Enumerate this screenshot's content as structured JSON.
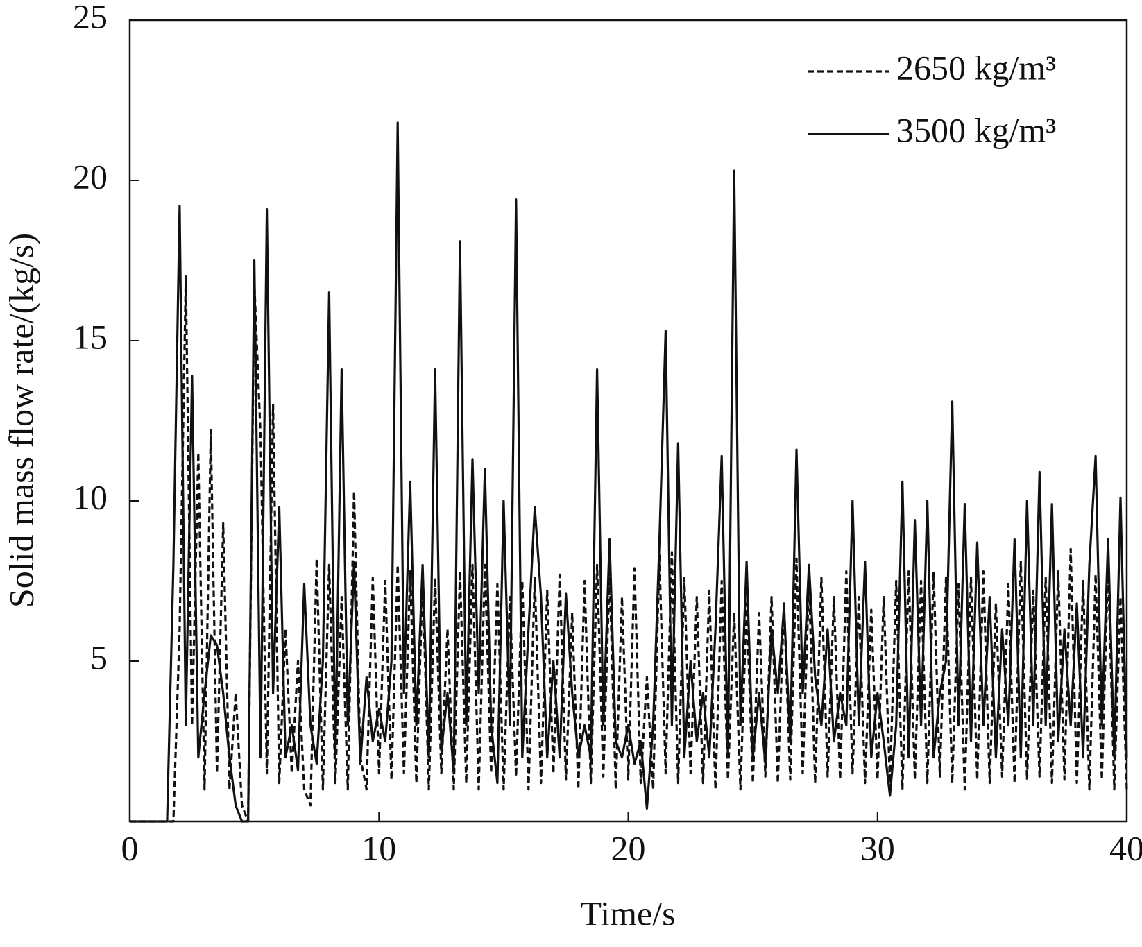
{
  "chart_data": {
    "type": "line",
    "xlabel": "Time/s",
    "ylabel": "Solid mass flow rate/(kg/s)",
    "x": [
      0,
      0.25,
      0.5,
      0.75,
      1,
      1.25,
      1.5,
      1.75,
      2,
      2.25,
      2.5,
      2.75,
      3,
      3.25,
      3.5,
      3.75,
      4,
      4.25,
      4.5,
      4.75,
      5,
      5.25,
      5.5,
      5.75,
      6,
      6.25,
      6.5,
      6.75,
      7,
      7.25,
      7.5,
      7.75,
      8,
      8.25,
      8.5,
      8.75,
      9,
      9.25,
      9.5,
      9.75,
      10,
      10.25,
      10.5,
      10.75,
      11,
      11.25,
      11.5,
      11.75,
      12,
      12.25,
      12.5,
      12.75,
      13,
      13.25,
      13.5,
      13.75,
      14,
      14.25,
      14.5,
      14.75,
      15,
      15.25,
      15.5,
      15.75,
      16,
      16.25,
      16.5,
      16.75,
      17,
      17.25,
      17.5,
      17.75,
      18,
      18.25,
      18.5,
      18.75,
      19,
      19.25,
      19.5,
      19.75,
      20,
      20.25,
      20.5,
      20.75,
      21,
      21.25,
      21.5,
      21.75,
      22,
      22.25,
      22.5,
      22.75,
      23,
      23.25,
      23.5,
      23.75,
      24,
      24.25,
      24.5,
      24.75,
      25,
      25.25,
      25.5,
      25.75,
      26,
      26.25,
      26.5,
      26.75,
      27,
      27.25,
      27.5,
      27.75,
      28,
      28.25,
      28.5,
      28.75,
      29,
      29.25,
      29.5,
      29.75,
      30,
      30.25,
      30.5,
      30.75,
      31,
      31.25,
      31.5,
      31.75,
      32,
      32.25,
      32.5,
      32.75,
      33,
      33.25,
      33.5,
      33.75,
      34,
      34.25,
      34.5,
      34.75,
      35,
      35.25,
      35.5,
      35.75,
      36,
      36.25,
      36.5,
      36.75,
      37,
      37.25,
      37.5,
      37.75,
      38,
      38.25,
      38.5,
      38.75,
      39,
      39.25,
      39.5,
      39.75,
      40
    ],
    "series": [
      {
        "name": "2650 kg/m³",
        "color": "#111111",
        "style": "dashed",
        "values": [
          0,
          0,
          0,
          0,
          0,
          0,
          0,
          0,
          6,
          17,
          3,
          11.5,
          1,
          12.2,
          1.5,
          9.3,
          1,
          4,
          0.5,
          0,
          16.8,
          12,
          1.5,
          13,
          1.2,
          6,
          1.5,
          5,
          1,
          0.5,
          8.2,
          1,
          8,
          1.2,
          7,
          1,
          10.3,
          2,
          1,
          7.6,
          1.5,
          7.5,
          1.3,
          8,
          1.5,
          7.8,
          1.2,
          7.5,
          1,
          7.6,
          1.5,
          6,
          1,
          7.8,
          1.2,
          8,
          1,
          8,
          1.5,
          7.4,
          1,
          7,
          1.4,
          7.5,
          1,
          7.6,
          1.2,
          7.2,
          1.5,
          7.7,
          1.3,
          6.5,
          1,
          7.5,
          1.2,
          8,
          1.4,
          7.8,
          1,
          7,
          1.3,
          7.9,
          1.2,
          4.5,
          1,
          8.3,
          1.5,
          8.4,
          1.2,
          7.6,
          1.5,
          7,
          1.2,
          7.2,
          1,
          7.5,
          1.3,
          6.5,
          1,
          6.8,
          1.2,
          6.5,
          1.4,
          7,
          1.2,
          6.8,
          1.3,
          8.2,
          1.5,
          7.5,
          1.2,
          7.6,
          1.4,
          7,
          1.3,
          7.8,
          1.5,
          7,
          1.2,
          6.6,
          1.3,
          7,
          1.2,
          7.5,
          1,
          7.8,
          1.3,
          7.5,
          1.2,
          7.8,
          1.4,
          7.6,
          1.2,
          7.4,
          1,
          7.6,
          1.3,
          7.8,
          1.2,
          6.8,
          1.4,
          7.4,
          1.2,
          8.1,
          1.3,
          7.2,
          1.4,
          7.6,
          1.2,
          7.8,
          1.3,
          8.5,
          1.2,
          7.5,
          1,
          7.7,
          1.3,
          8,
          1,
          7,
          1
        ]
      },
      {
        "name": "3500 kg/m³",
        "color": "#111111",
        "style": "solid",
        "values": [
          0,
          0,
          0,
          0,
          0,
          0,
          0,
          8,
          19.2,
          3,
          13.9,
          2,
          4,
          5.8,
          5.5,
          4,
          2,
          0.5,
          0,
          0,
          17.5,
          2,
          19.1,
          4,
          9.8,
          2,
          3,
          1.6,
          7.4,
          3,
          1.8,
          5,
          16.5,
          2,
          14.1,
          3,
          8.1,
          1.8,
          4.5,
          2.5,
          3.5,
          2.5,
          5,
          21.8,
          4,
          10.6,
          3,
          8,
          2,
          14.1,
          2.2,
          4,
          1.5,
          18.1,
          3,
          11.3,
          4,
          11,
          3,
          1.2,
          10,
          3,
          19.4,
          2,
          6,
          9.8,
          7,
          2,
          5,
          2,
          7.1,
          4,
          2,
          3,
          2,
          14.1,
          3,
          8.8,
          2.5,
          2,
          3,
          1.8,
          2.5,
          0.4,
          3,
          8.7,
          15.3,
          3,
          11.8,
          2,
          5,
          2.5,
          4,
          2,
          6,
          11.4,
          2,
          20.3,
          3,
          8.1,
          2,
          4,
          1.8,
          6,
          4,
          6.7,
          2.5,
          11.6,
          4,
          8,
          4.5,
          3,
          6,
          2.5,
          4,
          3,
          10,
          3,
          8.1,
          2,
          4,
          2.5,
          0.8,
          3,
          10.6,
          2,
          9.4,
          3,
          10,
          2,
          4,
          5,
          13.1,
          3,
          9.9,
          2.5,
          8.7,
          3,
          7,
          2,
          6,
          3,
          8.8,
          2,
          10,
          3,
          10.9,
          3,
          9.9,
          2.5,
          6,
          3,
          6.8,
          2,
          8,
          11.4,
          3,
          8.8,
          2,
          10.1,
          2
        ]
      }
    ],
    "xlim": [
      0,
      40
    ],
    "xticks": [
      0,
      10,
      20,
      30,
      40
    ],
    "ylim": [
      0,
      25
    ],
    "yticks": [
      5,
      10,
      15,
      20,
      25
    ],
    "grid": false,
    "legend": "upper right"
  }
}
